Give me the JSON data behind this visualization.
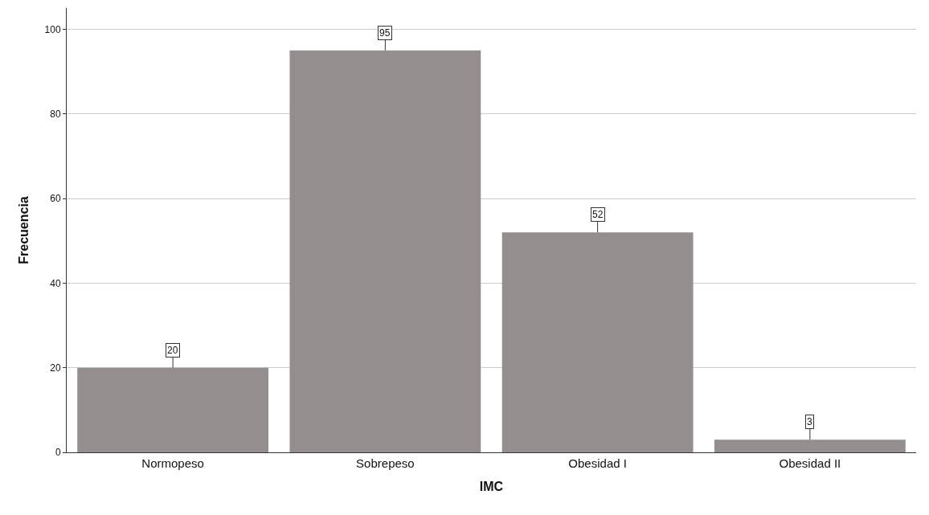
{
  "chart_data": {
    "type": "bar",
    "xlabel": "IMC",
    "ylabel": "Frecuencia",
    "categories": [
      "Normopeso",
      "Sobrepeso",
      "Obesidad I",
      "Obesidad II"
    ],
    "values": [
      20,
      95,
      52,
      3
    ],
    "color": "#948f8e",
    "ylim": [
      0,
      105
    ],
    "yticks": [
      0,
      20,
      40,
      60,
      80,
      100
    ],
    "grid": "y",
    "data_labels": true,
    "legend": false
  }
}
